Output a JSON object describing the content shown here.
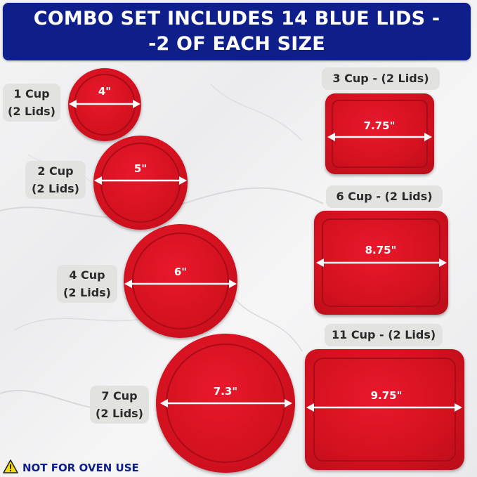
{
  "banner": {
    "line1": "COMBO SET INCLUDES 14 BLUE LIDS -",
    "line2": "-2 OF EACH SIZE"
  },
  "round_lids": [
    {
      "size": "1 Cup",
      "count": "(2 Lids)",
      "dimension": "4\""
    },
    {
      "size": "2 Cup",
      "count": "(2 Lids)",
      "dimension": "5\""
    },
    {
      "size": "4 Cup",
      "count": "(2 Lids)",
      "dimension": "6\""
    },
    {
      "size": "7 Cup",
      "count": "(2 Lids)",
      "dimension": "7.3\""
    }
  ],
  "rect_lids": [
    {
      "label": "3 Cup - (2 Lids)",
      "dimension": "7.75\""
    },
    {
      "label": "6 Cup - (2 Lids)",
      "dimension": "8.75\""
    },
    {
      "label": "11 Cup - (2 Lids)",
      "dimension": "9.75\""
    }
  ],
  "warning": {
    "text": "NOT FOR OVEN USE",
    "icon": "warning-triangle-icon"
  },
  "colors": {
    "banner": "#0e1f8c",
    "lid": "#d3111f",
    "warning_text": "#0e1f8c",
    "warning_icon": "#f5d90a"
  }
}
